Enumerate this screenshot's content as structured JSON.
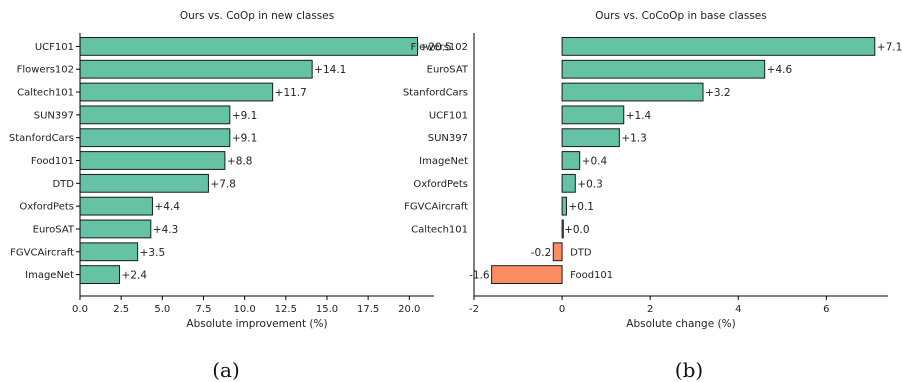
{
  "figure": {
    "sublabels": [
      "(a)",
      "(b)"
    ]
  },
  "colors": {
    "positive": "#66c2a5",
    "negative": "#fc8d62",
    "edge": "#1a1a1a"
  },
  "chart_data": [
    {
      "type": "bar",
      "orientation": "horizontal",
      "title": "Ours vs. CoOp in new classes",
      "xlabel": "Absolute improvement (%)",
      "ylabel": "",
      "categories": [
        "UCF101",
        "Flowers102",
        "Caltech101",
        "SUN397",
        "StanfordCars",
        "Food101",
        "DTD",
        "OxfordPets",
        "EuroSAT",
        "FGVCAircraft",
        "ImageNet"
      ],
      "values": [
        20.5,
        14.1,
        11.7,
        9.1,
        9.1,
        8.8,
        7.8,
        4.4,
        4.3,
        3.5,
        2.4
      ],
      "value_labels": [
        "+20.5",
        "+14.1",
        "+11.7",
        "+9.1",
        "+9.1",
        "+8.8",
        "+7.8",
        "+4.4",
        "+4.3",
        "+3.5",
        "+2.4"
      ],
      "xticks": [
        0.0,
        2.5,
        5.0,
        7.5,
        10.0,
        12.5,
        15.0,
        17.5,
        20.0
      ],
      "xtick_labels": [
        "0.0",
        "2.5",
        "5.0",
        "7.5",
        "10.0",
        "12.5",
        "15.0",
        "17.5",
        "20.0"
      ],
      "xlim": [
        0,
        21.5
      ],
      "grid": false,
      "legend": "none"
    },
    {
      "type": "bar",
      "orientation": "horizontal",
      "title": "Ours vs. CoCoOp in base classes",
      "xlabel": "Absolute change (%)",
      "ylabel": "",
      "categories": [
        "Flowers102",
        "EuroSAT",
        "StanfordCars",
        "UCF101",
        "SUN397",
        "ImageNet",
        "OxfordPets",
        "FGVCAircraft",
        "Caltech101",
        "DTD",
        "Food101"
      ],
      "values": [
        7.1,
        4.6,
        3.2,
        1.4,
        1.3,
        0.4,
        0.3,
        0.1,
        0.0,
        -0.2,
        -1.6
      ],
      "value_labels": [
        "+7.1",
        "+4.6",
        "+3.2",
        "+1.4",
        "+1.3",
        "+0.4",
        "+0.3",
        "+0.1",
        "+0.0",
        "-0.2",
        "-1.6"
      ],
      "xticks": [
        -2,
        0,
        2,
        4,
        6
      ],
      "xtick_labels": [
        "-2",
        "0",
        "2",
        "4",
        "6"
      ],
      "xlim": [
        -2.0,
        7.4
      ],
      "grid": false,
      "legend": "none"
    }
  ]
}
